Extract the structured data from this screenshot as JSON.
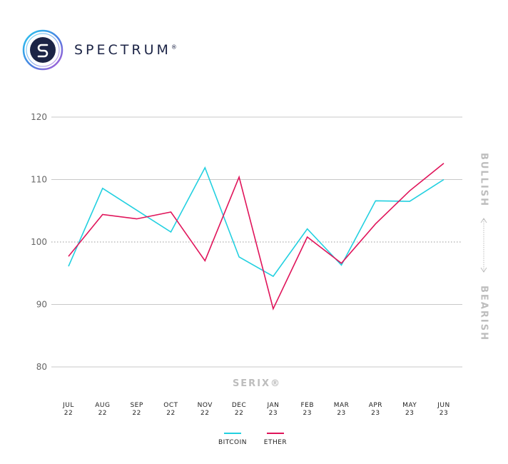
{
  "brand": {
    "name": "SPECTRUM",
    "mark": "®",
    "logo_icon": "spectrum-s-ring-icon"
  },
  "chart_data": {
    "type": "line",
    "xlabel": "SERIX®",
    "ylabel": "",
    "ylim": [
      80,
      120
    ],
    "yticks": [
      80,
      90,
      100,
      110,
      120
    ],
    "reference_line": 100,
    "categories": [
      [
        "JUL",
        "22"
      ],
      [
        "AUG",
        "22"
      ],
      [
        "SEP",
        "22"
      ],
      [
        "OCT",
        "22"
      ],
      [
        "NOV",
        "22"
      ],
      [
        "DEC",
        "22"
      ],
      [
        "JAN",
        "23"
      ],
      [
        "FEB",
        "23"
      ],
      [
        "MAR",
        "23"
      ],
      [
        "APR",
        "23"
      ],
      [
        "MAY",
        "23"
      ],
      [
        "JUN",
        "23"
      ]
    ],
    "series": [
      {
        "name": "BITCOIN",
        "color": "#22d0e0",
        "values": [
          96.1,
          108.6,
          105.1,
          101.6,
          111.9,
          97.6,
          94.5,
          102.1,
          96.3,
          106.6,
          106.5,
          110.0
        ]
      },
      {
        "name": "ETHER",
        "color": "#e0145a",
        "values": [
          97.7,
          104.4,
          103.7,
          104.8,
          97.0,
          110.4,
          89.3,
          100.8,
          96.6,
          102.9,
          108.2,
          112.6
        ]
      }
    ],
    "side_labels": {
      "top": "BULLISH",
      "bottom": "BEARISH"
    },
    "grid": true,
    "legend_position": "bottom-center"
  }
}
